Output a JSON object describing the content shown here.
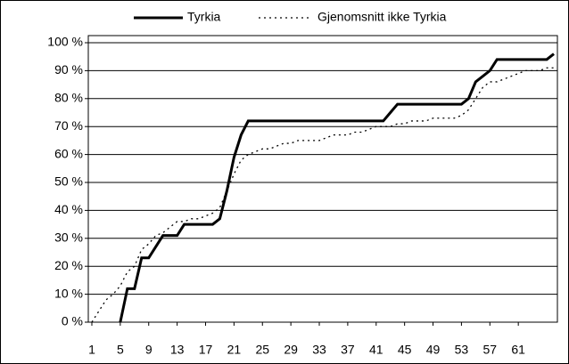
{
  "chart_data": {
    "type": "line",
    "x": [
      1,
      2,
      3,
      4,
      5,
      6,
      7,
      8,
      9,
      10,
      11,
      12,
      13,
      14,
      15,
      16,
      17,
      18,
      19,
      20,
      21,
      22,
      23,
      24,
      25,
      26,
      27,
      28,
      29,
      30,
      31,
      32,
      33,
      34,
      35,
      36,
      37,
      38,
      39,
      40,
      41,
      42,
      43,
      44,
      45,
      46,
      47,
      48,
      49,
      50,
      51,
      52,
      53,
      54,
      55,
      56,
      57,
      58,
      59,
      60,
      61,
      62,
      63,
      64,
      65,
      66
    ],
    "xlim": [
      0.5,
      66.5
    ],
    "xticks": [
      1,
      5,
      9,
      13,
      17,
      21,
      25,
      29,
      33,
      37,
      41,
      45,
      49,
      53,
      57,
      61
    ],
    "ylim": [
      0,
      100
    ],
    "yticks": [
      {
        "value": 0,
        "label": "0 %"
      },
      {
        "value": 10,
        "label": "10 %"
      },
      {
        "value": 20,
        "label": "20 %"
      },
      {
        "value": 30,
        "label": "30 %"
      },
      {
        "value": 40,
        "label": "40 %"
      },
      {
        "value": 50,
        "label": "50 %"
      },
      {
        "value": 60,
        "label": "60 %"
      },
      {
        "value": 70,
        "label": "70 %"
      },
      {
        "value": 80,
        "label": "80 %"
      },
      {
        "value": 90,
        "label": "90 %"
      },
      {
        "value": 100,
        "label": "100 %"
      }
    ],
    "grid": true,
    "legend": "top",
    "series": [
      {
        "name": "Tyrkia",
        "color": "#000000",
        "style": "solid",
        "values": [
          null,
          null,
          null,
          null,
          0,
          12,
          12,
          23,
          23,
          27,
          31,
          31,
          31,
          35,
          35,
          35,
          35,
          35,
          37,
          47,
          59,
          67,
          72,
          72,
          72,
          72,
          72,
          72,
          72,
          72,
          72,
          72,
          72,
          72,
          72,
          72,
          72,
          72,
          72,
          72,
          72,
          72,
          75,
          78,
          78,
          78,
          78,
          78,
          78,
          78,
          78,
          78,
          78,
          80,
          86,
          88,
          90,
          94,
          94,
          94,
          94,
          94,
          94,
          94,
          94,
          96
        ]
      },
      {
        "name": "Gjenomsnitt ikke Tyrkia",
        "color": "#000000",
        "style": "dotted",
        "values": [
          0,
          4,
          8,
          10,
          13,
          18,
          20,
          26,
          28,
          31,
          32,
          34,
          36,
          36,
          37,
          37,
          38,
          39,
          41,
          47,
          53,
          58,
          60,
          61,
          62,
          62,
          63,
          64,
          64,
          65,
          65,
          65,
          65,
          66,
          67,
          67,
          67,
          68,
          68,
          69,
          70,
          70,
          70,
          71,
          71,
          72,
          72,
          72,
          73,
          73,
          73,
          73,
          74,
          76,
          80,
          84,
          86,
          86,
          87,
          88,
          89,
          90,
          90,
          90,
          91,
          91
        ]
      }
    ]
  }
}
